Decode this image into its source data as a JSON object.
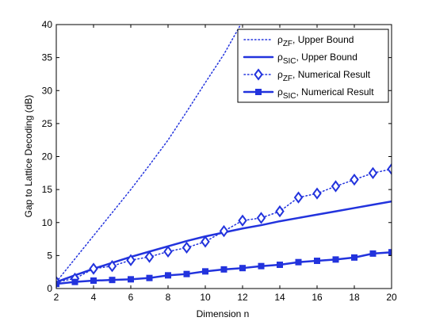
{
  "chart_data": {
    "type": "line",
    "xlabel": "Dimension n",
    "ylabel": "Gap to Lattice Decoding (dB)",
    "xlim": [
      2,
      20
    ],
    "ylim": [
      0,
      40
    ],
    "xticks": [
      "2",
      "4",
      "6",
      "8",
      "10",
      "12",
      "14",
      "16",
      "18",
      "20"
    ],
    "yticks": [
      "0",
      "5",
      "10",
      "15",
      "20",
      "25",
      "30",
      "35",
      "40"
    ],
    "grid": false,
    "legend_position": "top-right",
    "legend_sub": {
      "zf": "ZF",
      "sic": "SIC"
    },
    "legend_suffix": {
      "upper": ", Upper Bound",
      "numerical": ", Numerical Result"
    },
    "colors": {
      "series": "#2233DD",
      "axes": "#000000"
    },
    "series": [
      {
        "name": "ρZF, Upper Bound",
        "style": "dotted",
        "marker": "none",
        "x": [
          2,
          3,
          4,
          5,
          6,
          7,
          8,
          9,
          10,
          11,
          12
        ],
        "y": [
          1.0,
          4.5,
          8.0,
          11.5,
          15.0,
          18.7,
          22.5,
          26.8,
          31.2,
          35.5,
          40.5
        ]
      },
      {
        "name": "ρSIC, Upper Bound",
        "style": "solid",
        "marker": "none",
        "x": [
          2,
          3,
          4,
          5,
          6,
          7,
          8,
          9,
          10,
          11,
          12,
          13,
          14,
          15,
          16,
          17,
          18,
          19,
          20
        ],
        "y": [
          1.0,
          2.0,
          3.0,
          3.9,
          4.8,
          5.6,
          6.4,
          7.2,
          7.9,
          8.5,
          9.1,
          9.6,
          10.2,
          10.7,
          11.2,
          11.7,
          12.2,
          12.7,
          13.2
        ]
      },
      {
        "name": "ρZF, Numerical Result",
        "style": "dotted",
        "marker": "diamond",
        "x": [
          2,
          3,
          4,
          5,
          6,
          7,
          8,
          9,
          10,
          11,
          12,
          13,
          14,
          15,
          16,
          17,
          18,
          19,
          20
        ],
        "y": [
          1.0,
          1.5,
          3.0,
          3.4,
          4.3,
          4.8,
          5.6,
          6.2,
          7.1,
          8.7,
          10.3,
          10.7,
          11.7,
          13.8,
          14.4,
          15.5,
          16.5,
          17.5,
          18.1
        ]
      },
      {
        "name": "ρSIC, Numerical Result",
        "style": "solid",
        "marker": "square",
        "x": [
          2,
          3,
          4,
          5,
          6,
          7,
          8,
          9,
          10,
          11,
          12,
          13,
          14,
          15,
          16,
          17,
          18,
          19,
          20
        ],
        "y": [
          0.7,
          1.0,
          1.2,
          1.3,
          1.4,
          1.6,
          2.0,
          2.2,
          2.6,
          2.9,
          3.1,
          3.4,
          3.6,
          4.0,
          4.2,
          4.4,
          4.7,
          5.3,
          5.5
        ]
      }
    ]
  }
}
